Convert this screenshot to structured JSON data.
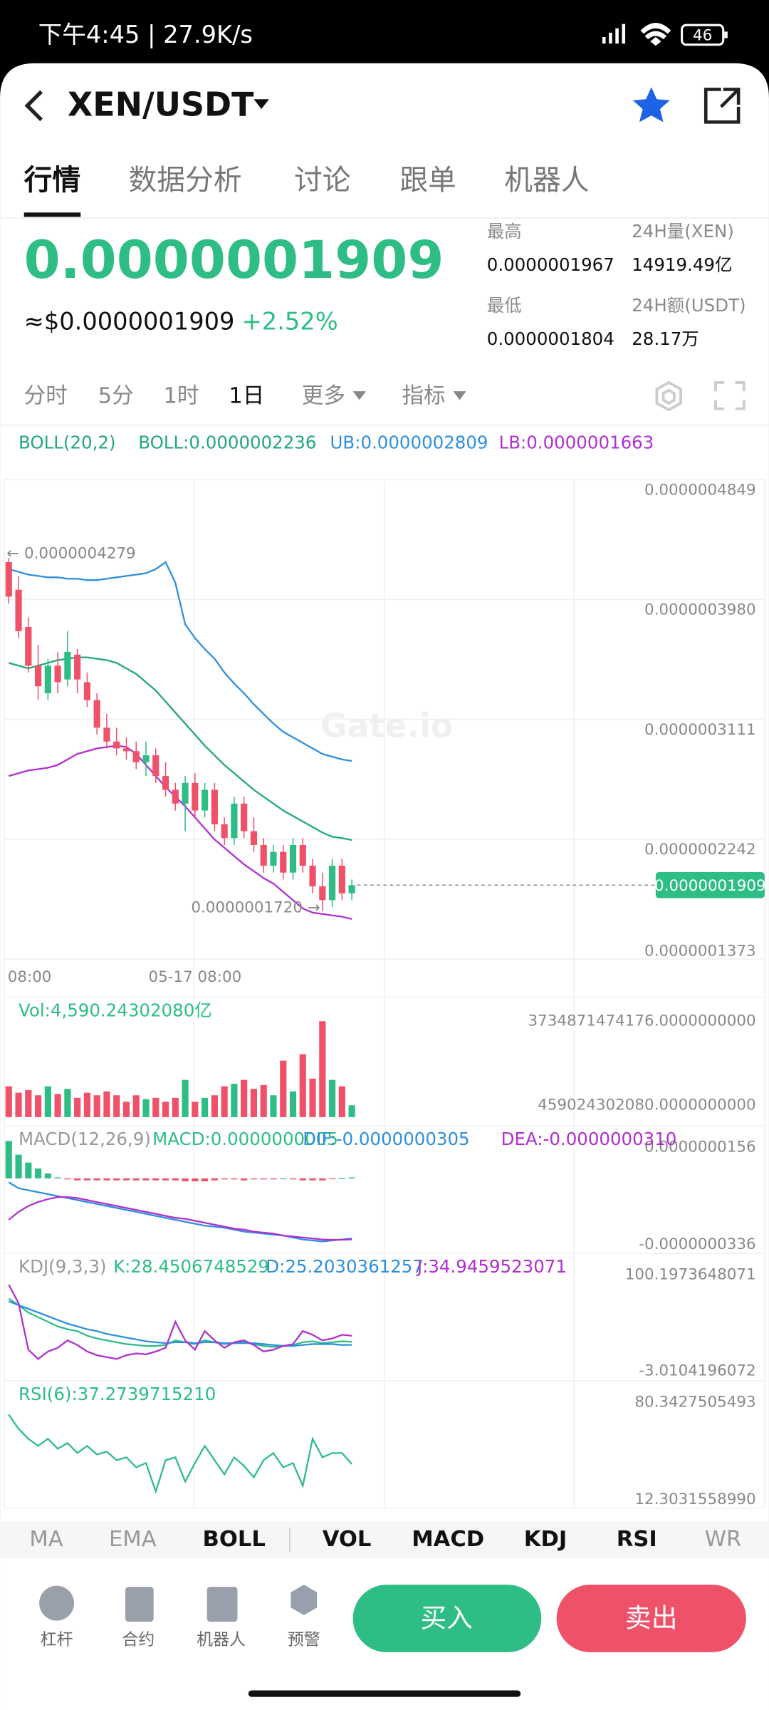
{
  "status_bar": {
    "time_speed": "下午4:45 | 27.9K/s",
    "battery": "46"
  },
  "header": {
    "pair": "XEN/USDT"
  },
  "tabs": [
    "行情",
    "数据分析",
    "讨论",
    "跟单",
    "机器人"
  ],
  "ticker": {
    "price": "0.0000001909",
    "usd_price": "≈$0.0000001909",
    "change": "+2.52%",
    "high_label": "最高",
    "high": "0.0000001967",
    "low_label": "最低",
    "low": "0.0000001804",
    "vol_label": "24H量(XEN)",
    "vol": "14919.49亿",
    "amount_label": "24H额(USDT)",
    "amount": "28.17万"
  },
  "intervals": [
    "分时",
    "5分",
    "1时",
    "1日",
    "更多",
    "指标"
  ],
  "watermark": "Gate.io",
  "chart_data": [
    {
      "type": "candlestick",
      "legend": "BOLL(20,2)",
      "up_color": "#2ebd85",
      "down_color": "#ef5169",
      "grid": true,
      "categories": [
        "08:00",
        null,
        null,
        null,
        null,
        null,
        null,
        null,
        null,
        null,
        null,
        null,
        null,
        null,
        null,
        null,
        null,
        null,
        null,
        "05-17 08:00",
        null,
        null,
        null,
        null,
        null,
        null,
        null,
        null,
        null,
        null,
        null,
        null,
        null,
        null,
        null,
        null
      ],
      "open": [
        4.25e-07,
        4.05e-07,
        3.78e-07,
        3.5e-07,
        3.3e-07,
        3.5e-07,
        3.4e-07,
        3.58e-07,
        3.38e-07,
        3.25e-07,
        3.05e-07,
        2.95e-07,
        2.9e-07,
        2.88e-07,
        2.8e-07,
        2.85e-07,
        2.7e-07,
        2.6e-07,
        2.5e-07,
        2.65e-07,
        2.45e-07,
        2.6e-07,
        2.35e-07,
        2.25e-07,
        2.5e-07,
        2.3e-07,
        2.2e-07,
        2.05e-07,
        2.15e-07,
        2e-07,
        2.2e-07,
        2.05e-07,
        1.9e-07,
        1.8e-07,
        2.05e-07,
        1.85e-07
      ],
      "high": [
        4.279e-07,
        4.15e-07,
        3.85e-07,
        3.65e-07,
        3.55e-07,
        3.6e-07,
        3.75e-07,
        3.62e-07,
        3.45e-07,
        3.3e-07,
        3.15e-07,
        3.05e-07,
        2.98e-07,
        2.95e-07,
        2.95e-07,
        2.9e-07,
        2.8e-07,
        2.65e-07,
        2.7e-07,
        2.72e-07,
        2.65e-07,
        2.65e-07,
        2.4e-07,
        2.55e-07,
        2.55e-07,
        2.4e-07,
        2.25e-07,
        2.2e-07,
        2.2e-07,
        2.25e-07,
        2.25e-07,
        2.1e-07,
        2e-07,
        2.1e-07,
        2.1e-07,
        1.95e-07
      ],
      "low": [
        3.95e-07,
        3.7e-07,
        3.45e-07,
        3.25e-07,
        3.25e-07,
        3.3e-07,
        3.35e-07,
        3.3e-07,
        3.2e-07,
        3e-07,
        2.9e-07,
        2.85e-07,
        2.82e-07,
        2.75e-07,
        2.7e-07,
        2.65e-07,
        2.55e-07,
        2.45e-07,
        2.3e-07,
        2.4e-07,
        2.4e-07,
        2.3e-07,
        2.2e-07,
        2.2e-07,
        2.25e-07,
        2.15e-07,
        2e-07,
        2e-07,
        1.95e-07,
        1.95e-07,
        2e-07,
        1.85e-07,
        1.72e-07,
        1.75e-07,
        1.8e-07,
        1.8e-07
      ],
      "close": [
        4e-07,
        3.75e-07,
        3.5e-07,
        3.35e-07,
        3.5e-07,
        3.38e-07,
        3.6e-07,
        3.4e-07,
        3.25e-07,
        3.05e-07,
        2.95e-07,
        2.9e-07,
        2.88e-07,
        2.8e-07,
        2.85e-07,
        2.7e-07,
        2.6e-07,
        2.5e-07,
        2.65e-07,
        2.45e-07,
        2.6e-07,
        2.35e-07,
        2.25e-07,
        2.5e-07,
        2.3e-07,
        2.2e-07,
        2.05e-07,
        2.15e-07,
        2e-07,
        2.2e-07,
        2.05e-07,
        1.9e-07,
        1.8e-07,
        2.05e-07,
        1.85e-07,
        1.909e-07
      ],
      "series": [
        {
          "name": "BOLL:0.0000002236",
          "color": "#22a877",
          "values": [
            3.52e-07,
            3.5e-07,
            3.48e-07,
            3.5e-07,
            3.52e-07,
            3.54e-07,
            3.55e-07,
            3.56e-07,
            3.56e-07,
            3.55e-07,
            3.54e-07,
            3.52e-07,
            3.48e-07,
            3.44e-07,
            3.38e-07,
            3.32e-07,
            3.24e-07,
            3.16e-07,
            3.08e-07,
            3e-07,
            2.92e-07,
            2.85e-07,
            2.78e-07,
            2.72e-07,
            2.66e-07,
            2.6e-07,
            2.55e-07,
            2.5e-07,
            2.45e-07,
            2.41e-07,
            2.37e-07,
            2.33e-07,
            2.29e-07,
            2.26e-07,
            2.25e-07,
            2.236e-07
          ]
        },
        {
          "name": "UB:0.0000002809",
          "color": "#2f8fdd",
          "values": [
            4.2e-07,
            4.18e-07,
            4.16e-07,
            4.15e-07,
            4.14e-07,
            4.14e-07,
            4.13e-07,
            4.13e-07,
            4.12e-07,
            4.12e-07,
            4.13e-07,
            4.14e-07,
            4.15e-07,
            4.16e-07,
            4.17e-07,
            4.2e-07,
            4.25e-07,
            4.1e-07,
            3.8e-07,
            3.7e-07,
            3.62e-07,
            3.55e-07,
            3.45e-07,
            3.37e-07,
            3.3e-07,
            3.22e-07,
            3.15e-07,
            3.08e-07,
            3.02e-07,
            2.98e-07,
            2.94e-07,
            2.9e-07,
            2.86e-07,
            2.84e-07,
            2.82e-07,
            2.809e-07
          ]
        },
        {
          "name": "LB:0.0000001663",
          "color": "#b02fcf",
          "values": [
            2.7e-07,
            2.72e-07,
            2.74e-07,
            2.75e-07,
            2.76e-07,
            2.78e-07,
            2.82e-07,
            2.86e-07,
            2.88e-07,
            2.9e-07,
            2.91e-07,
            2.92e-07,
            2.91e-07,
            2.86e-07,
            2.78e-07,
            2.7e-07,
            2.62e-07,
            2.55e-07,
            2.48e-07,
            2.4e-07,
            2.32e-07,
            2.24e-07,
            2.18e-07,
            2.12e-07,
            2.06e-07,
            2.01e-07,
            1.96e-07,
            1.92e-07,
            1.86e-07,
            1.8e-07,
            1.74e-07,
            1.71e-07,
            1.7e-07,
            1.69e-07,
            1.68e-07,
            1.663e-07
          ]
        }
      ],
      "max_label": "← 0.0000004279",
      "min_label": "0.0000001720 →",
      "last_price": {
        "value": 1.909e-07,
        "label": "0.0000001909"
      },
      "ylim": [
        1.373e-07,
        4.849e-07
      ],
      "yticks": [
        {
          "value": 4.849e-07,
          "label": "0.0000004849"
        },
        {
          "value": 3.98e-07,
          "label": "0.0000003980"
        },
        {
          "value": 3.111e-07,
          "label": "0.0000003111"
        },
        {
          "value": 2.242e-07,
          "label": "0.0000002242"
        },
        {
          "value": 1.373e-07,
          "label": "0.0000001373"
        }
      ]
    },
    {
      "type": "bar",
      "title": "Vol:4,590.24302080亿",
      "values": [
        1200000000000.0,
        950000000000.0,
        1050000000000.0,
        850000000000.0,
        1200000000000.0,
        900000000000.0,
        1100000000000.0,
        750000000000.0,
        950000000000.0,
        850000000000.0,
        1000000000000.0,
        850000000000.0,
        600000000000.0,
        850000000000.0,
        700000000000.0,
        750000000000.0,
        600000000000.0,
        750000000000.0,
        1450000000000.0,
        600000000000.0,
        750000000000.0,
        850000000000.0,
        1200000000000.0,
        1300000000000.0,
        1450000000000.0,
        1100000000000.0,
        1250000000000.0,
        850000000000.0,
        2200000000000.0,
        1000000000000.0,
        2450000000000.0,
        1500000000000.0,
        3734871474176,
        1450000000000.0,
        1200000000000.0,
        459024302080
      ],
      "ylim": [
        0,
        3734871474176
      ],
      "yticks": [
        {
          "value": 3734871474176,
          "label": "3734871474176.0000000000"
        },
        {
          "value": 459024302080,
          "label": "459024302080.0000000000"
        }
      ]
    },
    {
      "type": "macd",
      "legend": "MACD(12,26,9)",
      "series": [
        {
          "name": "MACD:0.0000000005",
          "color": "#2ebd85",
          "values": [
            1.9e-08,
            1.2e-08,
            8e-09,
            5e-09,
            2.5e-09,
            5e-10,
            -5e-10,
            -1e-09,
            -1e-09,
            -1e-09,
            -1e-09,
            -1e-09,
            -1e-09,
            -1e-09,
            -1e-09,
            -1e-09,
            -1e-09,
            -1e-09,
            -1.5e-09,
            -1.5e-09,
            -1.5e-09,
            -1e-09,
            -5e-10,
            -5e-10,
            -1e-09,
            -5e-10,
            -5e-10,
            -5e-10,
            0,
            -5e-10,
            -1e-09,
            -1e-09,
            -1e-09,
            -3e-10,
            1e-10,
            5e-10
          ]
        },
        {
          "name": "DIF:-0.0000000305",
          "color": "#2f8fdd",
          "values": [
            -2e-09,
            -5e-09,
            -6e-09,
            -7e-09,
            -8e-09,
            -9e-09,
            -1e-08,
            -1.1e-08,
            -1.2e-08,
            -1.3e-08,
            -1.4e-08,
            -1.5e-08,
            -1.6e-08,
            -1.7e-08,
            -1.8e-08,
            -1.9e-08,
            -2e-08,
            -2.1e-08,
            -2.2e-08,
            -2.3e-08,
            -2.4e-08,
            -2.45e-08,
            -2.5e-08,
            -2.6e-08,
            -2.7e-08,
            -2.75e-08,
            -2.8e-08,
            -2.85e-08,
            -2.9e-08,
            -3e-08,
            -3.1e-08,
            -3.15e-08,
            -3.2e-08,
            -3.15e-08,
            -3.1e-08,
            -3.05e-08
          ]
        },
        {
          "name": "DEA:-0.0000000310",
          "color": "#b02fcf",
          "values": [
            -2.1e-08,
            -1.7e-08,
            -1.4e-08,
            -1.2e-08,
            -1.05e-08,
            -9.5e-09,
            -9.5e-09,
            -1e-08,
            -1.1e-08,
            -1.2e-08,
            -1.3e-08,
            -1.4e-08,
            -1.5e-08,
            -1.6e-08,
            -1.7e-08,
            -1.8e-08,
            -1.9e-08,
            -2e-08,
            -2.05e-08,
            -2.15e-08,
            -2.25e-08,
            -2.35e-08,
            -2.45e-08,
            -2.55e-08,
            -2.6e-08,
            -2.7e-08,
            -2.75e-08,
            -2.8e-08,
            -2.9e-08,
            -2.95e-08,
            -3e-08,
            -3.05e-08,
            -3.1e-08,
            -3.12e-08,
            -3.11e-08,
            -3.1e-08
          ]
        }
      ],
      "ylim": [
        -3.36e-08,
        1.56e-08
      ],
      "yticks": [
        {
          "value": 1.56e-08,
          "label": "0.0000000156"
        },
        {
          "value": -3.36e-08,
          "label": "-0.0000000336"
        }
      ]
    },
    {
      "type": "line",
      "legend": "KDJ(9,3,3)",
      "series": [
        {
          "name": "K:28.4506748529",
          "color": "#2ebd85",
          "values": [
            75,
            68,
            60,
            55,
            50,
            45,
            42,
            40,
            35,
            32,
            30,
            28,
            26,
            25,
            24,
            24,
            25,
            30,
            28,
            26,
            30,
            28,
            26,
            27,
            28,
            26,
            24,
            23,
            24,
            25,
            28,
            29,
            27,
            28,
            29,
            28.4506748529
          ]
        },
        {
          "name": "D:25.2030361257",
          "color": "#2f8fdd",
          "values": [
            72,
            68,
            64,
            60,
            56,
            52,
            48,
            45,
            42,
            40,
            37,
            35,
            33,
            31,
            29,
            28,
            27,
            28,
            28,
            27,
            28,
            28,
            27,
            27,
            27,
            27,
            26,
            25,
            24,
            24,
            25,
            26,
            26,
            26,
            25,
            25.2030361257
          ]
        },
        {
          "name": "J:34.9459523071",
          "color": "#b02fcf",
          "values": [
            90,
            70,
            20,
            10,
            18,
            22,
            30,
            25,
            18,
            14,
            12,
            10,
            14,
            16,
            15,
            18,
            22,
            50,
            30,
            20,
            40,
            30,
            22,
            28,
            30,
            25,
            18,
            20,
            24,
            26,
            40,
            36,
            30,
            32,
            36,
            34.9459523071
          ]
        }
      ],
      "ylim": [
        -3.0104196072,
        100.1973648071
      ],
      "yticks": [
        100.1973648071,
        -3.0104196072
      ]
    },
    {
      "type": "line",
      "series": [
        {
          "name": "RSI(6):37.2739715210",
          "color": "#2ebd85",
          "values": [
            72,
            62,
            55,
            50,
            55,
            48,
            52,
            45,
            50,
            44,
            46,
            40,
            42,
            35,
            38,
            18,
            40,
            42,
            25,
            38,
            50,
            40,
            30,
            42,
            36,
            28,
            40,
            45,
            35,
            38,
            22,
            55,
            42,
            45,
            45,
            37.273971521
          ]
        }
      ],
      "ylim": [
        12.303155899,
        80.3427505493
      ],
      "yticks": [
        {
          "value": 80.3427505493,
          "label": "80.3427505493"
        },
        {
          "value": 12.303155899,
          "label": "12.3031558990"
        }
      ]
    }
  ],
  "indicator_tabs": [
    "MA",
    "EMA",
    "BOLL",
    "VOL",
    "MACD",
    "KDJ",
    "RSI",
    "WR"
  ],
  "bottom_bar": {
    "tools": [
      "杠杆",
      "合约",
      "机器人",
      "预警"
    ],
    "buy": "买入",
    "sell": "卖出"
  }
}
